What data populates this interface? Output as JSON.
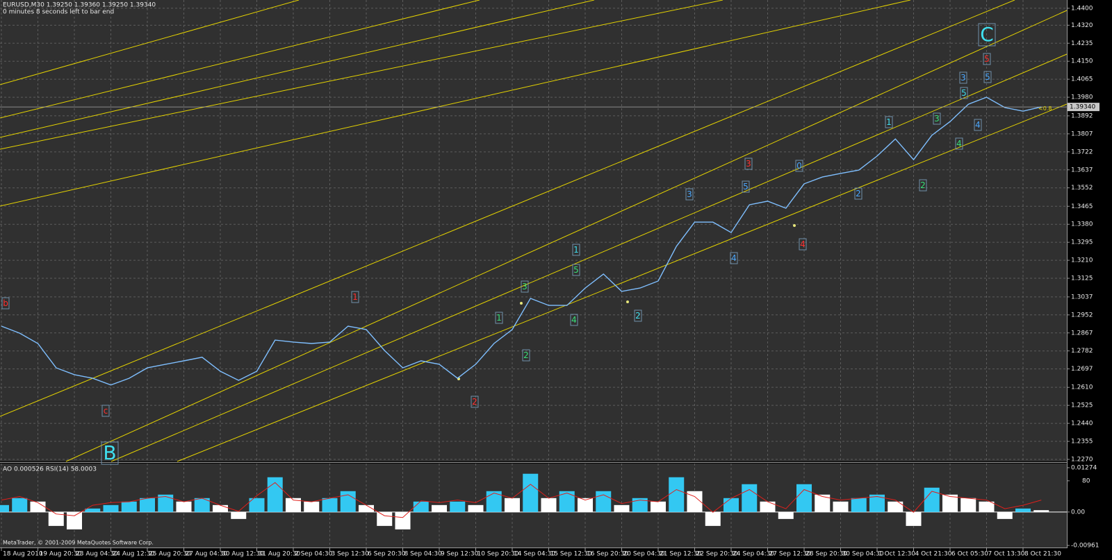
{
  "header": {
    "symbol_line": "EURUSD,M30  1.39250 1.39360 1.39250 1.39340",
    "timer": "0 minutes 8 seconds left to bar end"
  },
  "current_price": "1.39340",
  "footer": "MetaTrader, © 2001-2009 MetaQuotes Software Corp.",
  "chart_data": [
    {
      "type": "line",
      "categories": [
        "18 Aug 2010",
        null,
        "19 Aug 20:30",
        null,
        "23 Aug 04:30",
        null,
        "24 Aug 12:30",
        null,
        "25 Aug 20:30",
        null,
        "27 Aug 04:30",
        null,
        "30 Aug 12:30",
        null,
        "31 Aug 20:30",
        null,
        "2 Sep 04:30",
        null,
        "3 Sep 12:30",
        null,
        "6 Sep 20:30",
        null,
        "8 Sep 04:30",
        null,
        "9 Sep 12:30",
        null,
        "10 Sep 20:30",
        null,
        "14 Sep 04:30",
        null,
        "15 Sep 12:30",
        null,
        "16 Sep 20:30",
        null,
        "20 Sep 04:30",
        null,
        "21 Sep 12:30",
        null,
        "22 Sep 20:30",
        null,
        "24 Sep 04:30",
        null,
        "27 Sep 12:30",
        null,
        "28 Sep 20:30",
        null,
        "30 Sep 04:30",
        null,
        "1 Oct 12:30",
        null,
        "4 Oct 21:30",
        null,
        "6 Oct 05:30",
        null,
        "7 Oct 13:30",
        null,
        "8 Oct 21:30",
        null
      ],
      "values": [
        1.2899,
        1.2866,
        1.2817,
        1.2702,
        1.267,
        1.2653,
        1.2621,
        1.2653,
        1.2702,
        1.2719,
        1.2735,
        1.2752,
        1.2686,
        1.2643,
        1.2686,
        1.2833,
        1.2824,
        1.2817,
        1.2824,
        1.2899,
        1.2883,
        1.2784,
        1.2702,
        1.2735,
        1.2719,
        1.2653,
        1.2719,
        1.2817,
        1.2883,
        1.303,
        1.2997,
        1.2997,
        1.3079,
        1.3145,
        1.3063,
        1.3079,
        1.3112,
        1.3276,
        1.339,
        1.339,
        1.3341,
        1.3472,
        1.3489,
        1.3456,
        1.3571,
        1.3603,
        1.362,
        1.3636,
        1.3702,
        1.3783,
        1.3685,
        1.38,
        1.3865,
        1.3947,
        1.398,
        1.3931,
        1.3914,
        1.3934
      ],
      "color": "#7fbfff",
      "ylim": [
        1.226,
        1.4439
      ],
      "yticks": [
        {
          "value": 1.44,
          "label": "1.4400"
        },
        {
          "value": 1.432,
          "label": "1.4320"
        },
        1.4235,
        {
          "value": 1.415,
          "label": "1.4150"
        },
        1.4065,
        {
          "value": 1.398,
          "label": "1.3980"
        },
        1.3892,
        1.3807,
        1.3722,
        1.3637,
        1.3552,
        1.3465,
        {
          "value": 1.338,
          "label": "1.3380"
        },
        1.3295,
        {
          "value": 1.321,
          "label": "1.3210"
        },
        1.3125,
        1.3037,
        1.2952,
        1.2867,
        1.2782,
        1.2697,
        {
          "value": 1.261,
          "label": "1.2610"
        },
        1.2525,
        {
          "value": 1.244,
          "label": "1.2440"
        },
        1.2355,
        {
          "value": 1.227,
          "label": "1.2270"
        }
      ],
      "grid": true,
      "annotations": [
        {
          "text": "b",
          "color": "#ff3030"
        },
        {
          "text": "c",
          "color": "#ff3030"
        },
        {
          "text": "B",
          "color": "#3fe0f0"
        },
        {
          "text": "1",
          "color": "#ff3030"
        },
        {
          "text": "2",
          "color": "#ff3030"
        },
        {
          "text": "1",
          "color": "#39e07a"
        },
        {
          "text": "3",
          "color": "#39e07a"
        },
        {
          "text": "2",
          "color": "#39e07a"
        },
        {
          "text": "1",
          "color": "#3fe0f0"
        },
        {
          "text": "5",
          "color": "#39e07a"
        },
        {
          "text": "4",
          "color": "#39e07a"
        },
        {
          "text": "2",
          "color": "#3fe0f0"
        },
        {
          "text": "3",
          "color": "#4aa8ff"
        },
        {
          "text": "3",
          "color": "#ff3030"
        },
        {
          "text": "5",
          "color": "#4aa8ff"
        },
        {
          "text": "4",
          "color": "#4aa8ff"
        },
        {
          "text": "4",
          "color": "#ff3030"
        },
        {
          "text": "0",
          "color": "#4aa8ff"
        },
        {
          "text": "2",
          "color": "#4aa8ff"
        },
        {
          "text": "1",
          "color": "#3fe0f0"
        },
        {
          "text": "2",
          "color": "#39e07a"
        },
        {
          "text": "3",
          "color": "#39e07a"
        },
        {
          "text": "4",
          "color": "#39e07a"
        },
        {
          "text": "3",
          "color": "#4aa8ff"
        },
        {
          "text": "5",
          "color": "#3fe0f0"
        },
        {
          "text": "4",
          "color": "#4aa8ff"
        },
        {
          "text": "5",
          "color": "#ff3030"
        },
        {
          "text": "5",
          "color": "#4aa8ff"
        },
        {
          "text": "C",
          "color": "#3fe0f0"
        },
        {
          "text": "<0.8",
          "color": "#e6d400"
        }
      ]
    },
    {
      "type": "bar",
      "title": "AO 0.000526  RSI(14) 58.0003",
      "ylim": [
        -0.00961,
        0.01274
      ],
      "yticks": [
        0.01274,
        {
          "value": 0,
          "label": "0.00"
        },
        -0.00961
      ],
      "y2lim": [
        6,
        95
      ],
      "y2ticks": [
        80
      ],
      "series": [
        {
          "type": "bar",
          "color": "#33c8f2",
          "down_color": "#ffffff",
          "values": [
            0.002,
            0.004,
            0.003,
            -0.004,
            -0.005,
            0.001,
            0.002,
            0.003,
            0.004,
            0.005,
            0.003,
            0.004,
            0.002,
            -0.002,
            0.004,
            0.01,
            0.004,
            0.003,
            0.004,
            0.006,
            0.002,
            -0.004,
            -0.005,
            0.003,
            0.002,
            0.003,
            0.002,
            0.006,
            0.004,
            0.011,
            0.004,
            0.006,
            0.004,
            0.006,
            0.002,
            0.004,
            0.003,
            0.01,
            0.006,
            -0.004,
            0.004,
            0.008,
            0.003,
            -0.002,
            0.008,
            0.005,
            0.003,
            0.004,
            0.005,
            0.003,
            -0.004,
            0.007,
            0.005,
            0.004,
            0.003,
            -0.002,
            0.001,
            0.000526
          ]
        },
        {
          "type": "line",
          "color": "#e0201c",
          "axis": "y2",
          "values": [
            58,
            62,
            55,
            42,
            40,
            52,
            55,
            56,
            60,
            62,
            56,
            60,
            52,
            45,
            63,
            78,
            58,
            56,
            60,
            64,
            52,
            40,
            38,
            57,
            55,
            58,
            55,
            66,
            60,
            76,
            60,
            66,
            58,
            64,
            54,
            58,
            56,
            70,
            62,
            44,
            60,
            70,
            56,
            48,
            70,
            62,
            58,
            60,
            62,
            58,
            44,
            68,
            62,
            60,
            58,
            48,
            52,
            58.0003
          ]
        }
      ]
    }
  ]
}
